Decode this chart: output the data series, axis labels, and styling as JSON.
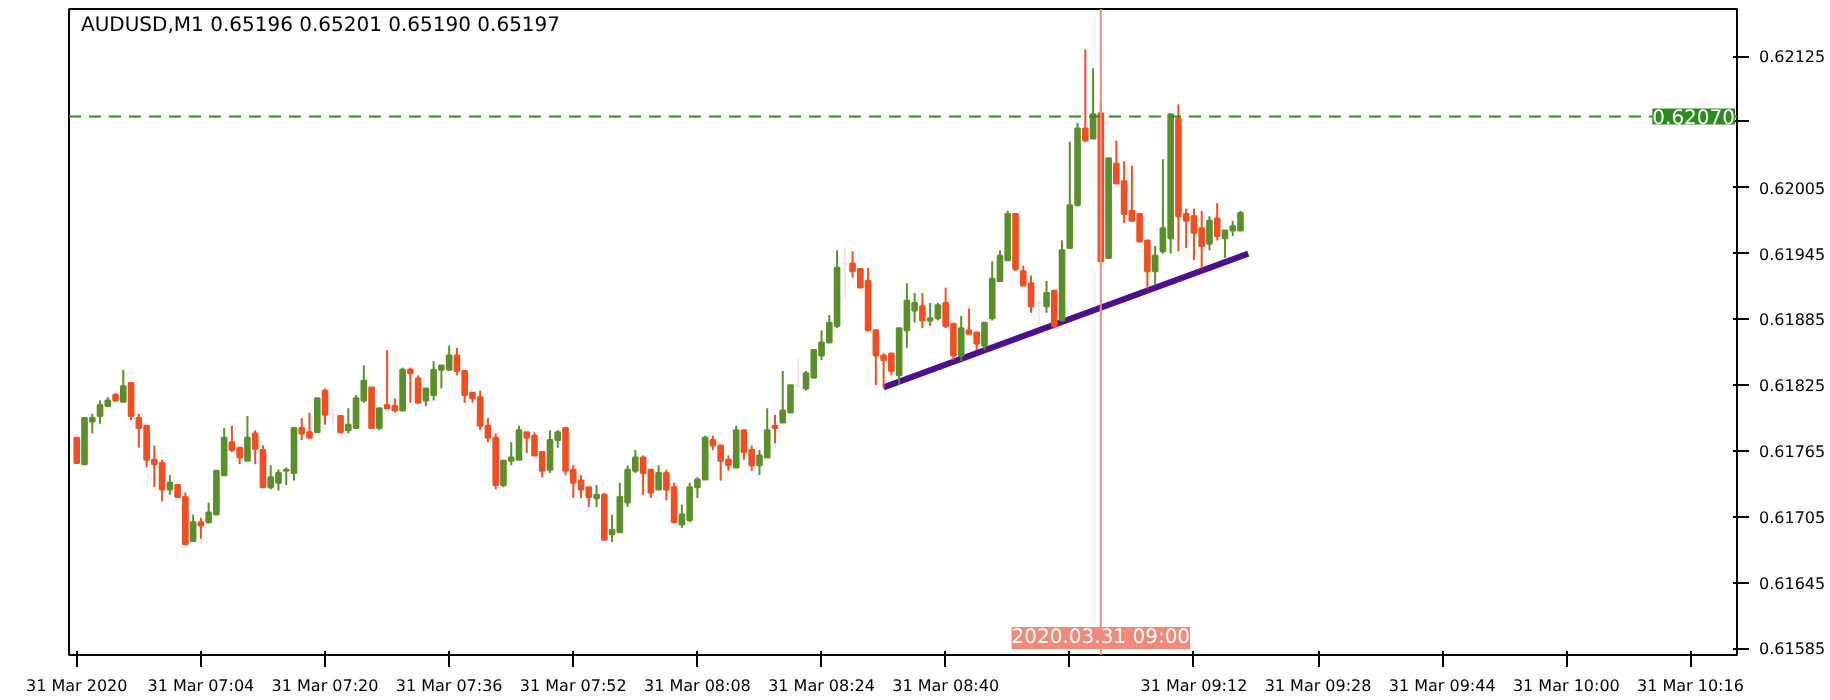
{
  "chart_data": {
    "type": "candlestick",
    "title": "AUDUSD,M1  0.65196 0.65201 0.65190 0.65197",
    "x": [
      "2020-03-31T06:48",
      "2020-03-31T06:49",
      "2020-03-31T06:50",
      "2020-03-31T06:51",
      "2020-03-31T06:52",
      "2020-03-31T06:53",
      "2020-03-31T06:54",
      "2020-03-31T06:55",
      "2020-03-31T06:56",
      "2020-03-31T06:57",
      "2020-03-31T06:58",
      "2020-03-31T06:59",
      "2020-03-31T07:00",
      "2020-03-31T07:01",
      "2020-03-31T07:02",
      "2020-03-31T07:03",
      "2020-03-31T07:04",
      "2020-03-31T07:05",
      "2020-03-31T07:06",
      "2020-03-31T07:07",
      "2020-03-31T07:08",
      "2020-03-31T07:09",
      "2020-03-31T07:10",
      "2020-03-31T07:11",
      "2020-03-31T07:12",
      "2020-03-31T07:13",
      "2020-03-31T07:14",
      "2020-03-31T07:15",
      "2020-03-31T07:16",
      "2020-03-31T07:17",
      "2020-03-31T07:18",
      "2020-03-31T07:19",
      "2020-03-31T07:20",
      "2020-03-31T07:21",
      "2020-03-31T07:22",
      "2020-03-31T07:23",
      "2020-03-31T07:24",
      "2020-03-31T07:25",
      "2020-03-31T07:26",
      "2020-03-31T07:27",
      "2020-03-31T07:28",
      "2020-03-31T07:29",
      "2020-03-31T07:30",
      "2020-03-31T07:31",
      "2020-03-31T07:32",
      "2020-03-31T07:33",
      "2020-03-31T07:34",
      "2020-03-31T07:35",
      "2020-03-31T07:36",
      "2020-03-31T07:37",
      "2020-03-31T07:38",
      "2020-03-31T07:39",
      "2020-03-31T07:40",
      "2020-03-31T07:41",
      "2020-03-31T07:42",
      "2020-03-31T07:43",
      "2020-03-31T07:44",
      "2020-03-31T07:45",
      "2020-03-31T07:46",
      "2020-03-31T07:47",
      "2020-03-31T07:48",
      "2020-03-31T07:49",
      "2020-03-31T07:50",
      "2020-03-31T07:51",
      "2020-03-31T07:52",
      "2020-03-31T07:53",
      "2020-03-31T07:54",
      "2020-03-31T07:55",
      "2020-03-31T07:56",
      "2020-03-31T07:57",
      "2020-03-31T07:58",
      "2020-03-31T07:59",
      "2020-03-31T08:00",
      "2020-03-31T08:01",
      "2020-03-31T08:02",
      "2020-03-31T08:03",
      "2020-03-31T08:04",
      "2020-03-31T08:05",
      "2020-03-31T08:06",
      "2020-03-31T08:07",
      "2020-03-31T08:08",
      "2020-03-31T08:09",
      "2020-03-31T08:10",
      "2020-03-31T08:11",
      "2020-03-31T08:12",
      "2020-03-31T08:13",
      "2020-03-31T08:14",
      "2020-03-31T08:15",
      "2020-03-31T08:16",
      "2020-03-31T08:17",
      "2020-03-31T08:18",
      "2020-03-31T08:19",
      "2020-03-31T08:20",
      "2020-03-31T08:21",
      "2020-03-31T08:22",
      "2020-03-31T08:23",
      "2020-03-31T08:24",
      "2020-03-31T08:25",
      "2020-03-31T08:26",
      "2020-03-31T08:27",
      "2020-03-31T08:28",
      "2020-03-31T08:29",
      "2020-03-31T08:30",
      "2020-03-31T08:31",
      "2020-03-31T08:32",
      "2020-03-31T08:33",
      "2020-03-31T08:34",
      "2020-03-31T08:35",
      "2020-03-31T08:36",
      "2020-03-31T08:37",
      "2020-03-31T08:38",
      "2020-03-31T08:39",
      "2020-03-31T08:40",
      "2020-03-31T08:41",
      "2020-03-31T08:42",
      "2020-03-31T08:43",
      "2020-03-31T08:44",
      "2020-03-31T08:45",
      "2020-03-31T08:46",
      "2020-03-31T08:47",
      "2020-03-31T08:48",
      "2020-03-31T08:49",
      "2020-03-31T08:50",
      "2020-03-31T08:51",
      "2020-03-31T08:52",
      "2020-03-31T08:53",
      "2020-03-31T08:54",
      "2020-03-31T08:55",
      "2020-03-31T08:56",
      "2020-03-31T08:57",
      "2020-03-31T08:58",
      "2020-03-31T08:59",
      "2020-03-31T09:00",
      "2020-03-31T09:01",
      "2020-03-31T09:02",
      "2020-03-31T09:03",
      "2020-03-31T09:04",
      "2020-03-31T09:05",
      "2020-03-31T09:06",
      "2020-03-31T09:07",
      "2020-03-31T09:08",
      "2020-03-31T09:09",
      "2020-03-31T09:10",
      "2020-03-31T09:11",
      "2020-03-31T09:12",
      "2020-03-31T09:13",
      "2020-03-31T09:14",
      "2020-03-31T09:15",
      "2020-03-31T09:16",
      "2020-03-31T09:17",
      "2020-03-31T09:18"
    ],
    "ohlc": [
      [
        0.61777,
        0.61777,
        0.61754,
        0.61754
      ],
      [
        0.61753,
        0.61795,
        0.61753,
        0.61795
      ],
      [
        0.61792,
        0.61799,
        0.61781,
        0.61795
      ],
      [
        0.61797,
        0.61811,
        0.6179,
        0.61807
      ],
      [
        0.61806,
        0.61814,
        0.61805,
        0.61811
      ],
      [
        0.61816,
        0.61818,
        0.6181,
        0.61811
      ],
      [
        0.6181,
        0.61839,
        0.6181,
        0.61824
      ],
      [
        0.61827,
        0.61827,
        0.61793,
        0.61797
      ],
      [
        0.61795,
        0.61799,
        0.61768,
        0.61786
      ],
      [
        0.61788,
        0.61788,
        0.6175,
        0.61757
      ],
      [
        0.61757,
        0.6177,
        0.61732,
        0.61753
      ],
      [
        0.61754,
        0.61757,
        0.61719,
        0.6173
      ],
      [
        0.6173,
        0.61743,
        0.61725,
        0.61736
      ],
      [
        0.61734,
        0.61734,
        0.61723,
        0.61723
      ],
      [
        0.61723,
        0.61727,
        0.61679,
        0.6168
      ],
      [
        0.61683,
        0.61707,
        0.61683,
        0.617
      ],
      [
        0.617,
        0.61704,
        0.61685,
        0.61697
      ],
      [
        0.617,
        0.61718,
        0.61699,
        0.61709
      ],
      [
        0.61707,
        0.61747,
        0.61707,
        0.61747
      ],
      [
        0.61743,
        0.61786,
        0.61743,
        0.61777
      ],
      [
        0.61773,
        0.61788,
        0.61764,
        0.61766
      ],
      [
        0.61768,
        0.61768,
        0.61753,
        0.61759
      ],
      [
        0.61756,
        0.61797,
        0.61756,
        0.61777
      ],
      [
        0.61781,
        0.61784,
        0.61753,
        0.61767
      ],
      [
        0.61766,
        0.6177,
        0.61732,
        0.61732
      ],
      [
        0.61732,
        0.61752,
        0.6173,
        0.61741
      ],
      [
        0.61736,
        0.61748,
        0.61729,
        0.61745
      ],
      [
        0.61747,
        0.6175,
        0.61734,
        0.61748
      ],
      [
        0.61745,
        0.61786,
        0.61738,
        0.61786
      ],
      [
        0.61786,
        0.61795,
        0.61775,
        0.61781
      ],
      [
        0.61782,
        0.618,
        0.61777,
        0.61777
      ],
      [
        0.61782,
        0.61813,
        0.61782,
        0.61813
      ],
      [
        0.6182,
        0.61822,
        0.61789,
        0.61798
      ],
      [
        0.61798,
        0.61804,
        0.61789,
        0.61798
      ],
      [
        0.61797,
        0.61798,
        0.61781,
        0.61782
      ],
      [
        0.61784,
        0.61804,
        0.61781,
        0.61789
      ],
      [
        0.61786,
        0.61816,
        0.61786,
        0.61813
      ],
      [
        0.61811,
        0.61843,
        0.61809,
        0.61829
      ],
      [
        0.61823,
        0.61823,
        0.61786,
        0.61786
      ],
      [
        0.61786,
        0.61804,
        0.61784,
        0.61804
      ],
      [
        0.61807,
        0.61857,
        0.61804,
        0.61804
      ],
      [
        0.61806,
        0.61813,
        0.618,
        0.61802
      ],
      [
        0.61802,
        0.61841,
        0.61802,
        0.61839
      ],
      [
        0.61839,
        0.61841,
        0.61809,
        0.61836
      ],
      [
        0.61831,
        0.61834,
        0.61809,
        0.61809
      ],
      [
        0.61811,
        0.61822,
        0.61806,
        0.61822
      ],
      [
        0.61816,
        0.61847,
        0.61811,
        0.61839
      ],
      [
        0.61839,
        0.61843,
        0.61822,
        0.61843
      ],
      [
        0.61839,
        0.61861,
        0.61838,
        0.61852
      ],
      [
        0.61852,
        0.61859,
        0.61834,
        0.61838
      ],
      [
        0.61838,
        0.61838,
        0.61809,
        0.61816
      ],
      [
        0.61818,
        0.61818,
        0.61809,
        0.61813
      ],
      [
        0.61814,
        0.6182,
        0.61784,
        0.61788
      ],
      [
        0.61788,
        0.61795,
        0.61773,
        0.61777
      ],
      [
        0.61777,
        0.61781,
        0.6173,
        0.61734
      ],
      [
        0.61734,
        0.61757,
        0.61732,
        0.61756
      ],
      [
        0.61756,
        0.61773,
        0.61752,
        0.61759
      ],
      [
        0.61757,
        0.61788,
        0.61757,
        0.61784
      ],
      [
        0.61782,
        0.61782,
        0.61763,
        0.61777
      ],
      [
        0.61779,
        0.61782,
        0.61761,
        0.61761
      ],
      [
        0.61764,
        0.61764,
        0.61741,
        0.61747
      ],
      [
        0.61748,
        0.61784,
        0.61745,
        0.61775
      ],
      [
        0.61775,
        0.61784,
        0.61768,
        0.61782
      ],
      [
        0.61786,
        0.61786,
        0.61743,
        0.61747
      ],
      [
        0.61748,
        0.61752,
        0.61722,
        0.61736
      ],
      [
        0.61738,
        0.61743,
        0.61722,
        0.6173
      ],
      [
        0.61732,
        0.61732,
        0.61714,
        0.61723
      ],
      [
        0.61722,
        0.61734,
        0.61714,
        0.61725
      ],
      [
        0.61725,
        0.61727,
        0.61684,
        0.61684
      ],
      [
        0.61689,
        0.61707,
        0.61682,
        0.61693
      ],
      [
        0.61691,
        0.61736,
        0.61691,
        0.61723
      ],
      [
        0.61718,
        0.61752,
        0.61714,
        0.61748
      ],
      [
        0.61747,
        0.61766,
        0.61745,
        0.61759
      ],
      [
        0.61759,
        0.61761,
        0.61725,
        0.61745
      ],
      [
        0.61748,
        0.61748,
        0.61722,
        0.61727
      ],
      [
        0.6173,
        0.61752,
        0.6173,
        0.61745
      ],
      [
        0.61745,
        0.61748,
        0.6172,
        0.6173
      ],
      [
        0.61732,
        0.61736,
        0.617,
        0.617
      ],
      [
        0.61698,
        0.61716,
        0.61695,
        0.61707
      ],
      [
        0.61702,
        0.61736,
        0.617,
        0.61732
      ],
      [
        0.61732,
        0.61741,
        0.61722,
        0.61739
      ],
      [
        0.61739,
        0.61779,
        0.61739,
        0.61777
      ],
      [
        0.61775,
        0.61779,
        0.61766,
        0.6177
      ],
      [
        0.6177,
        0.6177,
        0.61738,
        0.61756
      ],
      [
        0.61757,
        0.61761,
        0.61747,
        0.61752
      ],
      [
        0.6175,
        0.61788,
        0.6175,
        0.61784
      ],
      [
        0.61784,
        0.61784,
        0.61757,
        0.61764
      ],
      [
        0.61766,
        0.6177,
        0.61747,
        0.61752
      ],
      [
        0.61752,
        0.61766,
        0.61743,
        0.61761
      ],
      [
        0.61759,
        0.61804,
        0.61759,
        0.61784
      ],
      [
        0.61788,
        0.61798,
        0.61772,
        0.61786
      ],
      [
        0.61791,
        0.61838,
        0.61791,
        0.61802
      ],
      [
        0.618,
        0.61825,
        0.618,
        0.61825
      ],
      [
        0.61825,
        0.6185,
        0.61822,
        0.61825
      ],
      [
        0.61822,
        0.61838,
        0.6182,
        0.61836
      ],
      [
        0.61832,
        0.61857,
        0.61831,
        0.61857
      ],
      [
        0.61852,
        0.61875,
        0.61848,
        0.61864
      ],
      [
        0.61864,
        0.61889,
        0.61864,
        0.61882
      ],
      [
        0.61879,
        0.61948,
        0.61877,
        0.61932
      ],
      [
        0.61936,
        0.6195,
        0.61904,
        0.61936
      ],
      [
        0.61936,
        0.61947,
        0.61923,
        0.61929
      ],
      [
        0.61931,
        0.61931,
        0.61914,
        0.61914
      ],
      [
        0.6192,
        0.61932,
        0.61875,
        0.61875
      ],
      [
        0.61875,
        0.61875,
        0.61825,
        0.61852
      ],
      [
        0.61852,
        0.61854,
        0.61822,
        0.61848
      ],
      [
        0.61854,
        0.61854,
        0.61834,
        0.61838
      ],
      [
        0.61834,
        0.61877,
        0.61825,
        0.61877
      ],
      [
        0.61875,
        0.61918,
        0.61859,
        0.61902
      ],
      [
        0.61893,
        0.61909,
        0.61882,
        0.619
      ],
      [
        0.61897,
        0.61909,
        0.61877,
        0.61884
      ],
      [
        0.61884,
        0.619,
        0.61879,
        0.61886
      ],
      [
        0.61886,
        0.619,
        0.61884,
        0.61898
      ],
      [
        0.619,
        0.61914,
        0.61877,
        0.61879
      ],
      [
        0.61881,
        0.61881,
        0.61848,
        0.61852
      ],
      [
        0.61852,
        0.61888,
        0.61847,
        0.61877
      ],
      [
        0.61875,
        0.61895,
        0.61872,
        0.61872
      ],
      [
        0.61873,
        0.61873,
        0.61857,
        0.61863
      ],
      [
        0.61861,
        0.61882,
        0.61857,
        0.61882
      ],
      [
        0.61886,
        0.61938,
        0.61884,
        0.61922
      ],
      [
        0.6192,
        0.61948,
        0.6192,
        0.61943
      ],
      [
        0.61939,
        0.61984,
        0.61939,
        0.61981
      ],
      [
        0.61981,
        0.61982,
        0.61929,
        0.61931
      ],
      [
        0.61929,
        0.61934,
        0.61916,
        0.61916
      ],
      [
        0.61918,
        0.61925,
        0.61891,
        0.61897
      ],
      [
        0.619,
        0.61902,
        0.61879,
        0.619
      ],
      [
        0.61897,
        0.6192,
        0.61891,
        0.61909
      ],
      [
        0.61911,
        0.61911,
        0.61877,
        0.61879
      ],
      [
        0.61884,
        0.61957,
        0.61884,
        0.61948
      ],
      [
        0.6195,
        0.62047,
        0.6195,
        0.61989
      ],
      [
        0.61989,
        0.62064,
        0.61989,
        0.62059
      ],
      [
        0.62059,
        0.62131,
        0.62047,
        0.62048
      ],
      [
        0.6205,
        0.62114,
        0.6205,
        0.62072
      ],
      [
        0.62073,
        0.62084,
        0.61938,
        0.61938
      ],
      [
        0.61941,
        0.62032,
        0.61941,
        0.62032
      ],
      [
        0.62027,
        0.62048,
        0.62009,
        0.62009
      ],
      [
        0.62011,
        0.62029,
        0.61973,
        0.61981
      ],
      [
        0.61984,
        0.62025,
        0.61975,
        0.61975
      ],
      [
        0.61981,
        0.61981,
        0.61956,
        0.61956
      ],
      [
        0.61957,
        0.61957,
        0.61913,
        0.61929
      ],
      [
        0.61929,
        0.61952,
        0.61916,
        0.61943
      ],
      [
        0.61947,
        0.62031,
        0.61945,
        0.61968
      ],
      [
        0.61959,
        0.62072,
        0.61945,
        0.62072
      ],
      [
        0.62068,
        0.62081,
        0.61947,
        0.61979
      ],
      [
        0.61981,
        0.61986,
        0.6195,
        0.61975
      ],
      [
        0.61979,
        0.61986,
        0.61939,
        0.61964
      ],
      [
        0.61968,
        0.61984,
        0.61932,
        0.61952
      ],
      [
        0.61954,
        0.61979,
        0.61948,
        0.61975
      ],
      [
        0.61977,
        0.61991,
        0.61957,
        0.61961
      ],
      [
        0.61959,
        0.61966,
        0.61941,
        0.61966
      ],
      [
        0.61966,
        0.61975,
        0.61961,
        0.6197
      ],
      [
        0.61966,
        0.61984,
        0.61966,
        0.61982
      ]
    ],
    "colors": [
      "#f14e23",
      "#5b8f2b",
      "#5b8f2b",
      "#5b8f2b",
      "#5b8f2b",
      "#f14e23",
      "#5b8f2b",
      "#f14e23",
      "#f14e23",
      "#f14e23",
      "#f14e23",
      "#f14e23",
      "#5b8f2b",
      "#f14e23",
      "#f14e23",
      "#5b8f2b",
      "#f14e23",
      "#5b8f2b",
      "#5b8f2b",
      "#5b8f2b",
      "#f14e23",
      "#f14e23",
      "#5b8f2b",
      "#f14e23",
      "#f14e23",
      "#5b8f2b",
      "#5b8f2b",
      "#5b8f2b",
      "#5b8f2b",
      "#f14e23",
      "#f14e23",
      "#5b8f2b",
      "#f14e23",
      "#f3e2db",
      "#f14e23",
      "#5b8f2b",
      "#5b8f2b",
      "#5b8f2b",
      "#f14e23",
      "#5b8f2b",
      "#f14e23",
      "#f14e23",
      "#5b8f2b",
      "#f14e23",
      "#f14e23",
      "#5b8f2b",
      "#5b8f2b",
      "#5b8f2b",
      "#5b8f2b",
      "#f14e23",
      "#f14e23",
      "#f14e23",
      "#f14e23",
      "#f14e23",
      "#f14e23",
      "#5b8f2b",
      "#5b8f2b",
      "#5b8f2b",
      "#f14e23",
      "#f14e23",
      "#f14e23",
      "#5b8f2b",
      "#5b8f2b",
      "#f14e23",
      "#f14e23",
      "#f14e23",
      "#f14e23",
      "#5b8f2b",
      "#f14e23",
      "#5b8f2b",
      "#5b8f2b",
      "#5b8f2b",
      "#5b8f2b",
      "#f14e23",
      "#f14e23",
      "#5b8f2b",
      "#f14e23",
      "#f14e23",
      "#5b8f2b",
      "#5b8f2b",
      "#5b8f2b",
      "#5b8f2b",
      "#f14e23",
      "#f14e23",
      "#f14e23",
      "#5b8f2b",
      "#f14e23",
      "#f14e23",
      "#5b8f2b",
      "#5b8f2b",
      "#f14e23",
      "#5b8f2b",
      "#5b8f2b",
      "#f3e2db",
      "#5b8f2b",
      "#5b8f2b",
      "#5b8f2b",
      "#5b8f2b",
      "#5b8f2b",
      "#f3e2db",
      "#f14e23",
      "#f14e23",
      "#f14e23",
      "#f14e23",
      "#f14e23",
      "#f14e23",
      "#5b8f2b",
      "#5b8f2b",
      "#5b8f2b",
      "#f14e23",
      "#5b8f2b",
      "#5b8f2b",
      "#f14e23",
      "#f14e23",
      "#5b8f2b",
      "#f14e23",
      "#f14e23",
      "#5b8f2b",
      "#5b8f2b",
      "#5b8f2b",
      "#5b8f2b",
      "#f14e23",
      "#f14e23",
      "#f14e23",
      "#f3e2db",
      "#5b8f2b",
      "#f14e23",
      "#5b8f2b",
      "#5b8f2b",
      "#5b8f2b",
      "#f14e23",
      "#5b8f2b",
      "#f14e23",
      "#5b8f2b",
      "#f14e23",
      "#f14e23",
      "#f14e23",
      "#f14e23",
      "#f14e23",
      "#5b8f2b",
      "#5b8f2b",
      "#5b8f2b",
      "#f14e23",
      "#f14e23",
      "#f14e23",
      "#f14e23",
      "#5b8f2b",
      "#f14e23",
      "#5b8f2b",
      "#5b8f2b",
      "#5b8f2b"
    ],
    "series": [
      {
        "type": "line",
        "x": [
          "2020-03-31T08:32",
          "2020-03-31T09:19"
        ],
        "values": [
          0.61823,
          0.61945
        ],
        "color": "#4b0f8f"
      }
    ],
    "ref_lines": [
      {
        "axis": "y",
        "value": 0.6207,
        "label": "0.62070",
        "color": "#2e8b22",
        "line_style": "dashed"
      },
      {
        "axis": "x",
        "value": "2020-03-31T09:00",
        "label": "2020.03.31 09:00",
        "color": "#f08a7a"
      }
    ],
    "xlim": [
      "2020-03-31T06:47",
      "2020-03-31T10:22"
    ],
    "xticks": [
      {
        "value": "2020-03-31T06:48",
        "label": "31 Mar 2020"
      },
      {
        "value": "2020-03-31T07:04",
        "label": "31 Mar 07:04"
      },
      {
        "value": "2020-03-31T07:20",
        "label": "31 Mar 07:20"
      },
      {
        "value": "2020-03-31T07:36",
        "label": "31 Mar 07:36"
      },
      {
        "value": "2020-03-31T07:52",
        "label": "31 Mar 07:52"
      },
      {
        "value": "2020-03-31T08:08",
        "label": "31 Mar 08:08"
      },
      {
        "value": "2020-03-31T08:24",
        "label": "31 Mar 08:24"
      },
      {
        "value": "2020-03-31T08:40",
        "label": "31 Mar 08:40"
      },
      {
        "value": "2020-03-31T08:56",
        "label": null
      },
      {
        "value": "2020-03-31T09:12",
        "label": "31 Mar 09:12"
      },
      {
        "value": "2020-03-31T09:28",
        "label": "31 Mar 09:28"
      },
      {
        "value": "2020-03-31T09:44",
        "label": "31 Mar 09:44"
      },
      {
        "value": "2020-03-31T10:00",
        "label": "31 Mar 10:00"
      },
      {
        "value": "2020-03-31T10:16",
        "label": "31 Mar 10:16"
      }
    ],
    "ylim": [
      0.61579,
      0.62168
    ],
    "yticks": [
      0.62125,
      {
        "value": 0.62065,
        "label": null
      },
      0.62005,
      0.61945,
      0.61885,
      0.61825,
      0.61765,
      0.61705,
      0.61645,
      0.61585
    ]
  }
}
